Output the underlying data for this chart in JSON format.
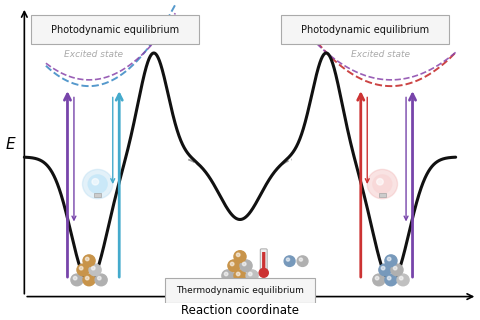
{
  "xlabel": "Reaction coordinate",
  "ylabel": "E",
  "bg_color": "#ffffff",
  "curve_color": "#111111",
  "curve_lw": 2.2,
  "excited_blue_color": "#5599cc",
  "excited_red_color": "#cc4444",
  "excited_purple_color": "#8844aa",
  "arrow_purple": "#7744aa",
  "arrow_blue": "#44aacc",
  "arrow_red": "#cc3333",
  "box_bg": "#f5f5f5",
  "box_edge": "#aaaaaa",
  "text_gray": "#aaaaaa",
  "label_photo_left": "Photodynamic equilibrium",
  "label_photo_right": "Photodynamic equilibrium",
  "label_excited_left": "Excited state",
  "label_excited_right": "Excited state",
  "label_thermo": "Thermodynamic equilibrium"
}
